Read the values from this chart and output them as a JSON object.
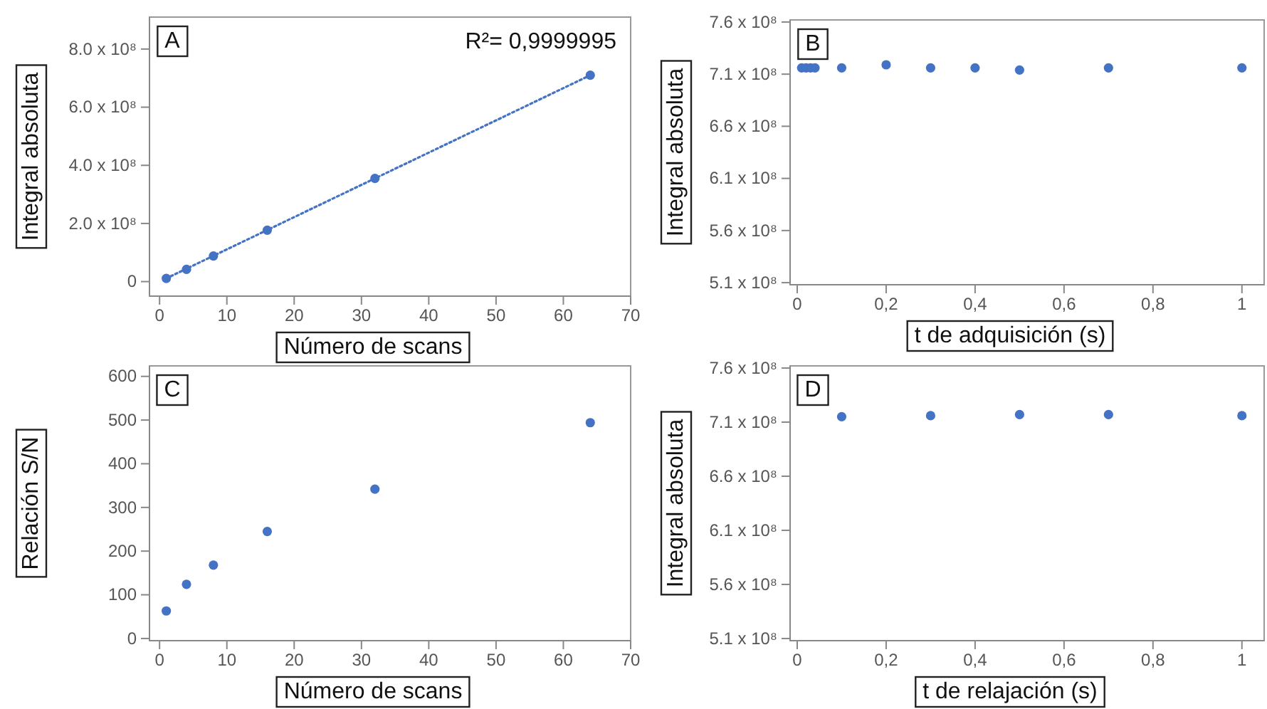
{
  "chart_data": [
    {
      "type": "scatter",
      "title": "A",
      "xlabel": "Número de scans",
      "ylabel": "Integral absoluta",
      "marker": "circle",
      "x": [
        1,
        4,
        8,
        16,
        32,
        64
      ],
      "series": [
        {
          "color": "#4472c4",
          "values": [
            11000000,
            42000000,
            88000000,
            177000000,
            355000000,
            710000000
          ]
        },
        {
          "type": "line",
          "line_style": "dotted",
          "marker": "none",
          "color": "#4472c4",
          "x": [
            1,
            64
          ],
          "values": [
            11000000,
            710000000
          ]
        }
      ],
      "annotations": [
        "R²= 0,9999995"
      ],
      "xlim": [
        -1.5,
        70
      ],
      "xticks": [
        0,
        10,
        20,
        30,
        40,
        50,
        60,
        70
      ],
      "ylim": [
        -50000000,
        910000000
      ],
      "yticks": [
        0,
        {
          "value": 200000000,
          "label": "2.0 x 10⁸"
        },
        {
          "value": 400000000,
          "label": "4.0 x 10⁸"
        },
        {
          "value": 600000000,
          "label": "6.0 x 10⁸"
        },
        {
          "value": 800000000,
          "label": "8.0 x 10⁸"
        }
      ]
    },
    {
      "type": "scatter",
      "title": "B",
      "xlabel": "t de adquisición (s)",
      "ylabel": "Integral absoluta",
      "marker": "circle",
      "x": [
        0.01,
        0.02,
        0.03,
        0.04,
        0.1,
        0.2,
        0.3,
        0.4,
        0.5,
        0.7,
        1
      ],
      "series": [
        {
          "color": "#4472c4",
          "values": [
            716000000,
            716000000,
            716000000,
            716000000,
            716000000,
            719000000,
            716000000,
            716000000,
            714000000,
            716000000,
            716000000
          ]
        }
      ],
      "xlim": [
        -0.016,
        1.05
      ],
      "xticks": [
        0,
        {
          "value": 0.2,
          "label": "0,2"
        },
        {
          "value": 0.4,
          "label": "0,4"
        },
        {
          "value": 0.6,
          "label": "0,6"
        },
        {
          "value": 0.8,
          "label": "0,8"
        },
        1
      ],
      "ylim": [
        508000000,
        762000000
      ],
      "yticks": [
        {
          "value": 510000000,
          "label": "5.1 x 10⁸"
        },
        {
          "value": 560000000,
          "label": "5.6 x 10⁸"
        },
        {
          "value": 610000000,
          "label": "6.1 x 10⁸"
        },
        {
          "value": 660000000,
          "label": "6.6 x 10⁸"
        },
        {
          "value": 710000000,
          "label": "7.1 x 10⁸"
        },
        {
          "value": 760000000,
          "label": "7.6 x 10⁸"
        }
      ]
    },
    {
      "type": "scatter",
      "title": "C",
      "xlabel": "Número de scans",
      "ylabel": "Relación S/N",
      "marker": "circle",
      "x": [
        1,
        4,
        8,
        16,
        32,
        64
      ],
      "series": [
        {
          "color": "#4472c4",
          "values": [
            63,
            124,
            168,
            245,
            342,
            494
          ]
        }
      ],
      "xlim": [
        -1.5,
        70
      ],
      "xticks": [
        0,
        10,
        20,
        30,
        40,
        50,
        60,
        70
      ],
      "ylim": [
        -5,
        624
      ],
      "yticks": [
        0,
        100,
        200,
        300,
        400,
        500,
        600
      ]
    },
    {
      "type": "scatter",
      "title": "D",
      "xlabel": "t de relajación (s)",
      "ylabel": "Integral absoluta",
      "marker": "circle",
      "x": [
        0.1,
        0.3,
        0.5,
        0.7,
        1
      ],
      "series": [
        {
          "color": "#4472c4",
          "values": [
            715000000,
            716000000,
            717000000,
            717000000,
            716000000
          ]
        }
      ],
      "xlim": [
        -0.016,
        1.05
      ],
      "xticks": [
        0,
        {
          "value": 0.2,
          "label": "0,2"
        },
        {
          "value": 0.4,
          "label": "0,4"
        },
        {
          "value": 0.6,
          "label": "0,6"
        },
        {
          "value": 0.8,
          "label": "0,8"
        },
        1
      ],
      "ylim": [
        508000000,
        762000000
      ],
      "yticks": [
        {
          "value": 510000000,
          "label": "5.1 x 10⁸"
        },
        {
          "value": 560000000,
          "label": "5.6 x 10⁸"
        },
        {
          "value": 610000000,
          "label": "6.1 x 10⁸"
        },
        {
          "value": 660000000,
          "label": "6.6 x 10⁸"
        },
        {
          "value": 710000000,
          "label": "7.1 x 10⁸"
        },
        {
          "value": 760000000,
          "label": "7.6 x 10⁸"
        }
      ]
    }
  ]
}
